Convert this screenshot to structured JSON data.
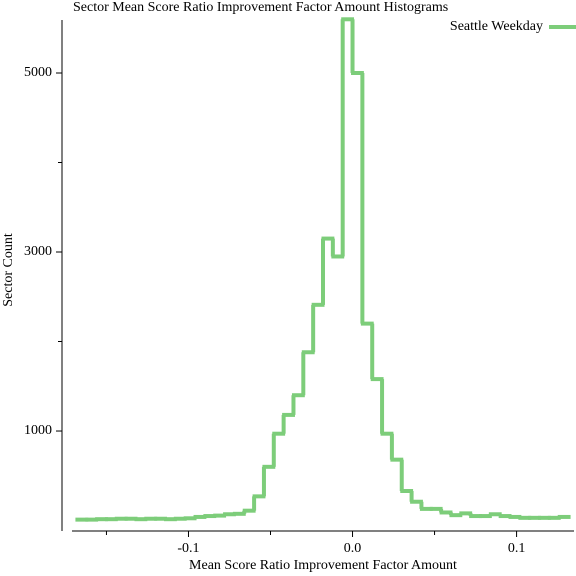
{
  "chart_data": {
    "type": "histogram",
    "title": "Sector Mean Score Ratio Improvement Factor Amount Histograms",
    "x_label": "Mean Score Ratio Improvement Factor Amount",
    "y_label": "Sector Count",
    "legend_position": "upper right",
    "bins": [
      -0.168,
      -0.162,
      -0.156,
      -0.15,
      -0.144,
      -0.138,
      -0.132,
      -0.126,
      -0.12,
      -0.114,
      -0.108,
      -0.102,
      -0.096,
      -0.09,
      -0.084,
      -0.078,
      -0.072,
      -0.066,
      -0.06,
      -0.054,
      -0.048,
      -0.042,
      -0.036,
      -0.03,
      -0.024,
      -0.018,
      -0.012,
      -0.006,
      0,
      0.006,
      0.012,
      0.018,
      0.024,
      0.03,
      0.036,
      0.042,
      0.048,
      0.054,
      0.06,
      0.066,
      0.072,
      0.078,
      0.084,
      0.09,
      0.096,
      0.102,
      0.108,
      0.114,
      0.12,
      0.126,
      0.132
    ],
    "series": [
      {
        "name": "Seattle Weekday",
        "color": "#7dcd7a",
        "values": [
          10,
          10,
          15,
          15,
          20,
          20,
          15,
          20,
          20,
          15,
          20,
          25,
          40,
          50,
          55,
          70,
          75,
          110,
          270,
          600,
          970,
          1180,
          1400,
          1880,
          2410,
          3150,
          2950,
          5600,
          5000,
          2200,
          1580,
          970,
          680,
          330,
          210,
          130,
          130,
          90,
          60,
          80,
          50,
          50,
          70,
          50,
          40,
          30,
          30,
          30,
          30,
          40
        ]
      }
    ],
    "xlim": [
      -0.171,
      0.135
    ],
    "ylim": [
      -117,
      5592
    ],
    "xticks": [
      -0.1,
      {
        "value": 0,
        "label": "0.0"
      },
      0.1
    ],
    "xminor": [
      -0.15,
      -0.05,
      0.05
    ],
    "yticks": [
      1000,
      3000,
      5000
    ],
    "yminor": [
      2000,
      4000
    ]
  }
}
